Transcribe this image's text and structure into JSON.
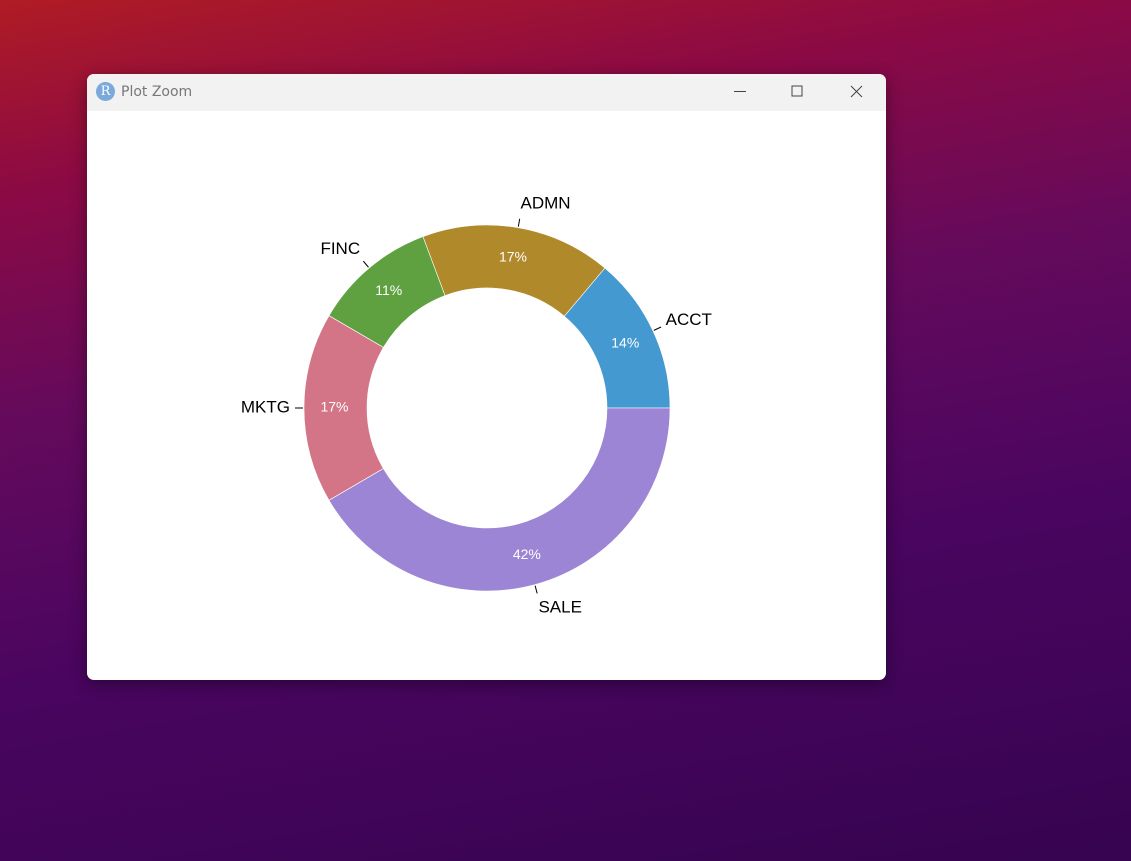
{
  "window": {
    "icon": "R",
    "title": "Plot Zoom"
  },
  "chart_data": {
    "type": "donut",
    "categories": [
      "ACCT",
      "ADMN",
      "FINC",
      "MKTG",
      "SALE"
    ],
    "values": [
      14,
      17,
      11,
      17,
      42
    ],
    "value_labels": [
      "14%",
      "17%",
      "11%",
      "17%",
      "42%"
    ],
    "colors": [
      "#4499d0",
      "#b0892a",
      "#5fa140",
      "#d47587",
      "#9b85d4"
    ]
  }
}
